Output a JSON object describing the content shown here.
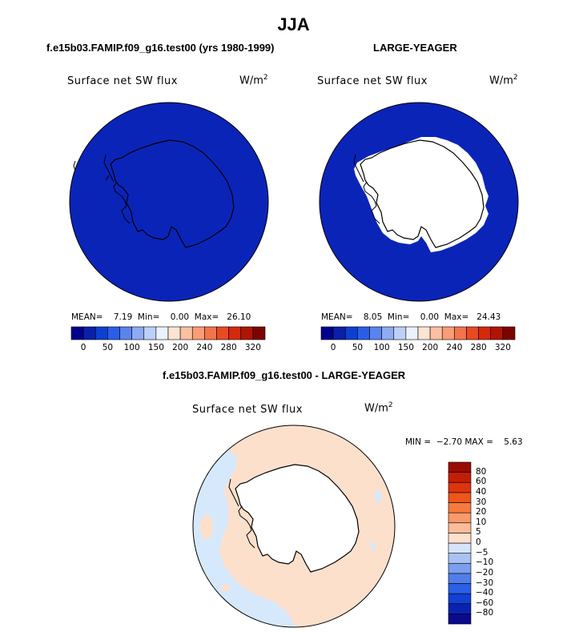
{
  "figure": {
    "title": "JJA",
    "colors": {
      "ocean_fill_top": "#0a24b8",
      "land_fill": "#ffffff",
      "diff_ocean": "#fde0cc",
      "diff_neg": "#d6e8fb",
      "outline": "#000000"
    }
  },
  "panel_left": {
    "case_title": "f.e15b03.FAMIP.f09_g16.test00 (yrs 1980-1999)",
    "variable": "Surface net SW flux",
    "units_base": "W/m",
    "units_exp": "2",
    "stats": "MEAN=    7.19  Min=    0.00  Max=   26.10"
  },
  "panel_right": {
    "case_title": "LARGE-YEAGER",
    "variable": "Surface net SW flux",
    "units_base": "W/m",
    "units_exp": "2",
    "stats": "MEAN=    8.05  Min=    0.00  Max=   24.43"
  },
  "panel_diff": {
    "case_title": "f.e15b03.FAMIP.f09_g16.test00 - LARGE-YEAGER",
    "variable": "Surface net SW flux",
    "units_base": "W/m",
    "units_exp": "2",
    "stats": "MIN =  −2.70 MAX =    5.63"
  },
  "colorbar_abs": {
    "colors": [
      "#00008b",
      "#0a1faa",
      "#0d3fd0",
      "#2a5ee8",
      "#5a83ee",
      "#8eaaf3",
      "#bcd0f7",
      "#eaf2fc",
      "#fde4d2",
      "#fbc0a2",
      "#f89d75",
      "#f3744a",
      "#ea4a22",
      "#d32a0c",
      "#b01503",
      "#7c0400"
    ],
    "tick_labels": [
      "0",
      "50",
      "100",
      "150",
      "200",
      "240",
      "280",
      "320"
    ],
    "tick_index": [
      1,
      3,
      5,
      7,
      9,
      11,
      13,
      15
    ]
  },
  "colorbar_diff": {
    "colors": [
      "#0a0a8c",
      "#0a22b0",
      "#1040d4",
      "#2a5fe6",
      "#4f7ee9",
      "#7c9eee",
      "#a9c2f3",
      "#d5e4f9",
      "#fde0cc",
      "#fbbd98",
      "#f99a68",
      "#f57a3e",
      "#ee561a",
      "#de3410",
      "#c21e06",
      "#9a0c00"
    ],
    "tick_labels": [
      "−80",
      "−60",
      "−40",
      "−30",
      "−20",
      "−10",
      "−5",
      "0",
      "5",
      "10",
      "20",
      "30",
      "40",
      "60",
      "80"
    ]
  },
  "chart_data": [
    {
      "type": "heatmap",
      "title": "Surface net SW flux",
      "units": "W/m^2",
      "projection": "south polar stereographic",
      "season": "JJA",
      "case": "f.e15b03.FAMIP.f09_g16.test00 (yrs 1980-1999)",
      "mean": 7.19,
      "min": 0.0,
      "max": 26.1,
      "contour_levels": [
        0,
        50,
        100,
        150,
        200,
        240,
        280,
        320
      ]
    },
    {
      "type": "heatmap",
      "title": "Surface net SW flux",
      "units": "W/m^2",
      "projection": "south polar stereographic",
      "season": "JJA",
      "case": "LARGE-YEAGER",
      "mean": 8.05,
      "min": 0.0,
      "max": 24.43,
      "contour_levels": [
        0,
        50,
        100,
        150,
        200,
        240,
        280,
        320
      ]
    },
    {
      "type": "heatmap",
      "title": "Surface net SW flux",
      "units": "W/m^2",
      "projection": "south polar stereographic",
      "season": "JJA",
      "case": "f.e15b03.FAMIP.f09_g16.test00 - LARGE-YEAGER",
      "min": -2.7,
      "max": 5.63,
      "contour_levels": [
        -80,
        -60,
        -40,
        -30,
        -20,
        -10,
        -5,
        0,
        5,
        10,
        20,
        30,
        40,
        60,
        80
      ]
    }
  ]
}
